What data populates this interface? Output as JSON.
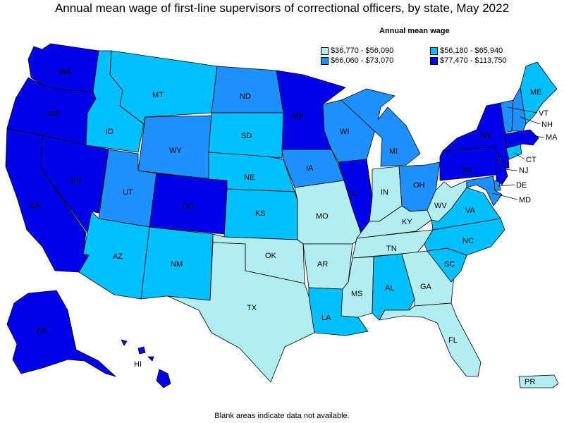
{
  "title": "Annual mean wage of first-line supervisors of correctional officers, by state, May 2022",
  "legend": {
    "title": "Annual mean wage",
    "items": [
      {
        "label": "$36,770 - $56,090",
        "color": "#b2eef0"
      },
      {
        "label": "$56,180 - $65,940",
        "color": "#00bfff"
      },
      {
        "label": "$66,060 - $73,070",
        "color": "#1e90ff"
      },
      {
        "label": "$77,470 - $113,750",
        "color": "#0000e8"
      }
    ]
  },
  "footnote": "Blank areas indicate data not available.",
  "states": [
    {
      "abbr": "WA",
      "bin": 3
    },
    {
      "abbr": "OR",
      "bin": 3
    },
    {
      "abbr": "CA",
      "bin": 3
    },
    {
      "abbr": "NV",
      "bin": 3
    },
    {
      "abbr": "ID",
      "bin": 1
    },
    {
      "abbr": "MT",
      "bin": 1
    },
    {
      "abbr": "WY",
      "bin": 2
    },
    {
      "abbr": "UT",
      "bin": 2
    },
    {
      "abbr": "AZ",
      "bin": 1
    },
    {
      "abbr": "CO",
      "bin": 3
    },
    {
      "abbr": "NM",
      "bin": 1
    },
    {
      "abbr": "ND",
      "bin": 2
    },
    {
      "abbr": "SD",
      "bin": 1
    },
    {
      "abbr": "NE",
      "bin": 1
    },
    {
      "abbr": "KS",
      "bin": 1
    },
    {
      "abbr": "OK",
      "bin": 0
    },
    {
      "abbr": "TX",
      "bin": 0
    },
    {
      "abbr": "MN",
      "bin": 3
    },
    {
      "abbr": "IA",
      "bin": 2
    },
    {
      "abbr": "MO",
      "bin": 0
    },
    {
      "abbr": "AR",
      "bin": 0
    },
    {
      "abbr": "LA",
      "bin": 1
    },
    {
      "abbr": "WI",
      "bin": 2
    },
    {
      "abbr": "IL",
      "bin": 3
    },
    {
      "abbr": "MI",
      "bin": 2
    },
    {
      "abbr": "IN",
      "bin": 0
    },
    {
      "abbr": "OH",
      "bin": 2
    },
    {
      "abbr": "KY",
      "bin": 0
    },
    {
      "abbr": "TN",
      "bin": 0
    },
    {
      "abbr": "MS",
      "bin": 0
    },
    {
      "abbr": "AL",
      "bin": 1
    },
    {
      "abbr": "GA",
      "bin": 0
    },
    {
      "abbr": "FL",
      "bin": 0
    },
    {
      "abbr": "SC",
      "bin": 1
    },
    {
      "abbr": "NC",
      "bin": 1
    },
    {
      "abbr": "VA",
      "bin": 1
    },
    {
      "abbr": "WV",
      "bin": 0
    },
    {
      "abbr": "PA",
      "bin": 3
    },
    {
      "abbr": "NY",
      "bin": 3
    },
    {
      "abbr": "NJ",
      "bin": 3
    },
    {
      "abbr": "DE",
      "bin": 2
    },
    {
      "abbr": "MD",
      "bin": 2
    },
    {
      "abbr": "CT",
      "bin": 1
    },
    {
      "abbr": "MA",
      "bin": 3
    },
    {
      "abbr": "VT",
      "bin": 2
    },
    {
      "abbr": "NH",
      "bin": 2
    },
    {
      "abbr": "ME",
      "bin": 1
    },
    {
      "abbr": "AK",
      "bin": 3
    },
    {
      "abbr": "HI",
      "bin": 3
    },
    {
      "abbr": "PR",
      "bin": 0
    }
  ]
}
